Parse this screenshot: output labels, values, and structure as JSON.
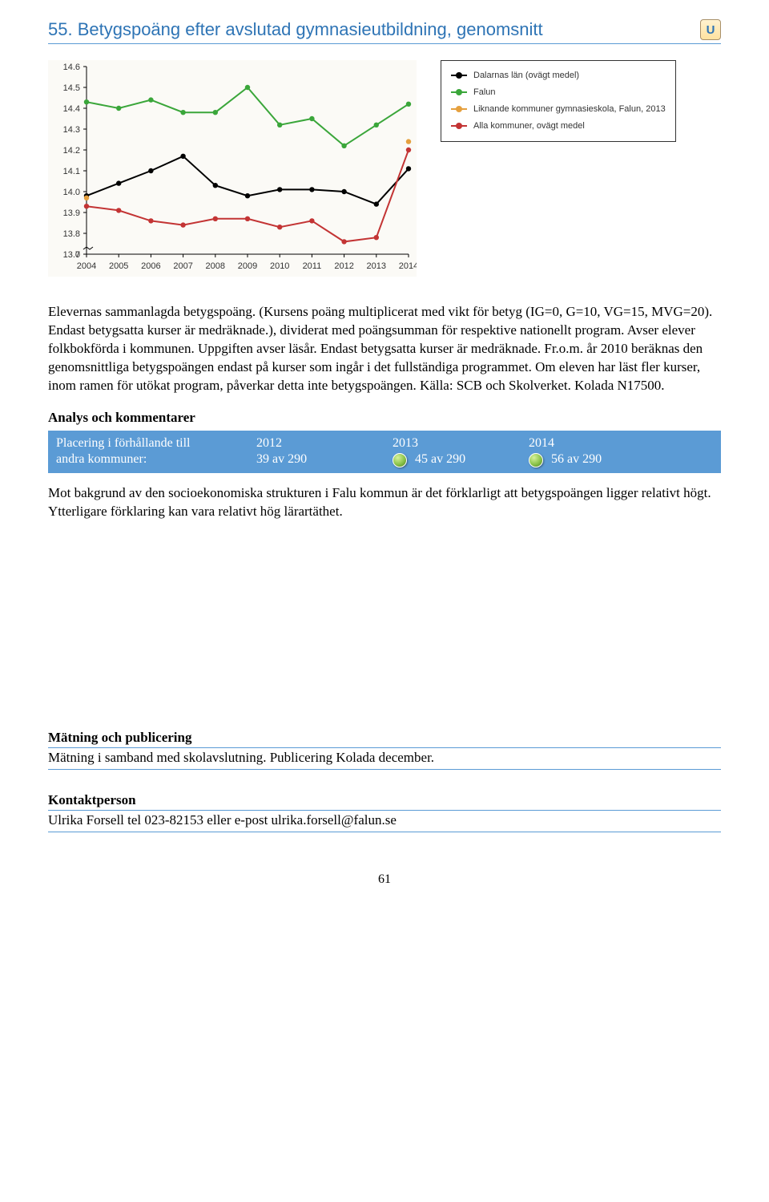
{
  "title": "55. Betygspoäng efter avslutad gymnasieutbildning, genomsnitt",
  "badge": "U",
  "chart": {
    "type": "line",
    "years": [
      2004,
      2005,
      2006,
      2007,
      2008,
      2009,
      2010,
      2011,
      2012,
      2013,
      2014
    ],
    "ylim": [
      13.7,
      14.6
    ],
    "ytick_step": 0.1,
    "background_color": "#fbfaf6",
    "axis_color": "#000000",
    "grid": false,
    "axis_break_at_origin": true,
    "series": [
      {
        "name": "Dalarnas län (ovägt medel)",
        "color": "#000000",
        "values": [
          13.98,
          14.04,
          14.1,
          14.17,
          14.03,
          13.98,
          14.01,
          14.01,
          14.0,
          13.94,
          14.11
        ]
      },
      {
        "name": "Falun",
        "color": "#3aa63a",
        "values": [
          14.43,
          14.4,
          14.44,
          14.38,
          14.38,
          14.5,
          14.32,
          14.35,
          14.22,
          14.32,
          14.42
        ]
      },
      {
        "name": "Liknande kommuner gymnasieskola, Falun, 2013",
        "color": "#e5a03e",
        "values": [
          13.97,
          null,
          null,
          null,
          null,
          null,
          null,
          null,
          null,
          null,
          14.24
        ]
      },
      {
        "name": "Alla kommuner, ovägt medel",
        "color": "#c33434",
        "values": [
          13.93,
          13.91,
          13.86,
          13.84,
          13.87,
          13.87,
          13.83,
          13.86,
          13.76,
          13.78,
          14.2
        ]
      }
    ],
    "line_width": 2,
    "marker_radius": 3.2,
    "label_fontsize": 11,
    "tick_fontsize": 11
  },
  "legend_items": [
    {
      "color": "#000000",
      "label": "Dalarnas län (ovägt medel)"
    },
    {
      "color": "#3aa63a",
      "label": "Falun"
    },
    {
      "color": "#e5a03e",
      "label": "Liknande kommuner gymnasieskola, Falun, 2013"
    },
    {
      "color": "#c33434",
      "label": "Alla kommuner, ovägt medel"
    }
  ],
  "description": "Elevernas sammanlagda betygspoäng. (Kursens poäng multiplicerat med vikt för betyg (IG=0, G=10, VG=15, MVG=20). Endast betygsatta kurser är medräknade.), dividerat med poängsumman för respektive nationellt program. Avser elever folkbokförda i kommunen. Uppgiften avser läsår. Endast betygsatta kurser är medräknade. Fr.o.m. år 2010 beräknas den genomsnittliga betygspoängen endast på kurser som ingår i det fullständiga programmet. Om eleven har läst fler kurser, inom ramen för utökat program, påverkar detta inte betygspoängen. Källa: SCB och Skolverket. Kolada N17500.",
  "analys_heading": "Analys och kommentarer",
  "ranking": {
    "label_line1": "Placering i förhållande till",
    "label_line2": "andra kommuner:",
    "years": [
      {
        "year": "2012",
        "value": "39 av 290",
        "dot": false
      },
      {
        "year": "2013",
        "value": "45 av 290",
        "dot": true
      },
      {
        "year": "2014",
        "value": "56 av 290",
        "dot": true
      }
    ]
  },
  "analys_body": "Mot bakgrund av den socioekonomiska strukturen i Falu kommun är det förklarligt att betygspoängen ligger relativt högt. Ytterligare förklaring kan vara relativt hög lärartäthet.",
  "matning_heading": "Mätning och publicering",
  "matning_body": "Mätning i samband med skolavslutning. Publicering Kolada december.",
  "kontakt_heading": "Kontaktperson",
  "kontakt_body": "Ulrika Forsell tel 023-82153 eller e-post ulrika.forsell@falun.se",
  "page_number": "61"
}
